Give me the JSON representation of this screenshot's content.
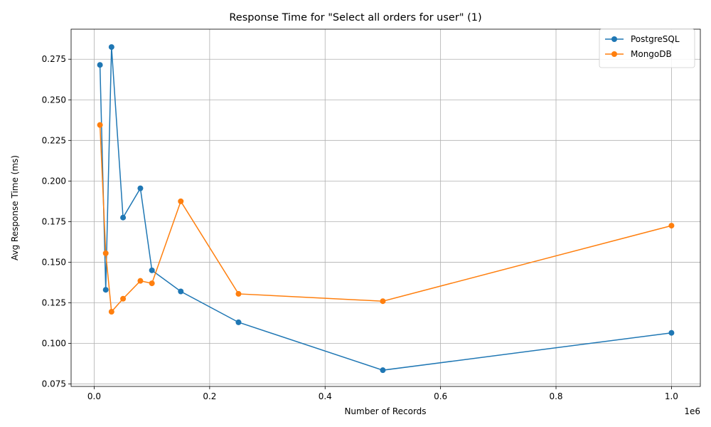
{
  "chart_data": {
    "type": "line",
    "title": "Response Time for \"Select all orders for user\" (1)",
    "xlabel": "Number of Records",
    "ylabel": "Avg Response Time (ms)",
    "x_offset_label": "1e6",
    "xlim": [
      -0.04,
      1.05
    ],
    "ylim": [
      0.0735,
      0.2935
    ],
    "x_ticks": [
      0.0,
      0.2,
      0.4,
      0.6,
      0.8,
      1.0
    ],
    "x_tick_labels": [
      "0.0",
      "0.2",
      "0.4",
      "0.6",
      "0.8",
      "1.0"
    ],
    "y_ticks": [
      0.075,
      0.1,
      0.125,
      0.15,
      0.175,
      0.2,
      0.225,
      0.25,
      0.275
    ],
    "y_tick_labels": [
      "0.075",
      "0.100",
      "0.125",
      "0.150",
      "0.175",
      "0.200",
      "0.225",
      "0.250",
      "0.275"
    ],
    "grid": true,
    "legend_position": "top-right",
    "x": [
      0.01,
      0.02,
      0.03,
      0.05,
      0.08,
      0.1,
      0.15,
      0.25,
      0.5,
      1.0
    ],
    "series": [
      {
        "name": "PostgreSQL",
        "color": "#1f77b4",
        "values": [
          0.2715,
          0.133,
          0.2825,
          0.1775,
          0.1955,
          0.145,
          0.132,
          0.113,
          0.0835,
          0.1065
        ]
      },
      {
        "name": "MongoDB",
        "color": "#ff7f0e",
        "values": [
          0.2345,
          0.1555,
          0.1195,
          0.1275,
          0.1385,
          0.137,
          0.1875,
          0.1305,
          0.126,
          0.1725
        ]
      }
    ]
  }
}
